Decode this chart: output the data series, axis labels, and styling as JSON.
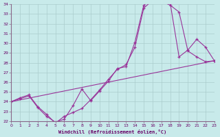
{
  "xlabel": "Windchill (Refroidissement éolien,°C)",
  "xlim": [
    0,
    23
  ],
  "ylim": [
    22,
    34
  ],
  "xticks": [
    0,
    1,
    2,
    3,
    4,
    5,
    6,
    7,
    8,
    9,
    10,
    11,
    12,
    13,
    14,
    15,
    16,
    17,
    18,
    19,
    20,
    21,
    22,
    23
  ],
  "yticks": [
    22,
    23,
    24,
    25,
    26,
    27,
    28,
    29,
    30,
    31,
    32,
    33,
    34
  ],
  "bg_color": "#c8eaea",
  "line_color": "#993399",
  "grid_color": "#aacccc",
  "line1_x": [
    0,
    1,
    2,
    3,
    4,
    5,
    6,
    7,
    8,
    9,
    10,
    11,
    12,
    13,
    14,
    15,
    16,
    17,
    18,
    19,
    20,
    21,
    22,
    23
  ],
  "line1_y": [
    24.0,
    24.4,
    24.7,
    23.5,
    22.7,
    21.8,
    22.5,
    22.9,
    23.3,
    24.2,
    25.2,
    26.3,
    27.3,
    27.8,
    29.6,
    33.6,
    34.4,
    34.3,
    33.9,
    33.2,
    29.2,
    28.6,
    28.1,
    28.2
  ],
  "line2_x": [
    0,
    1,
    2,
    3,
    4,
    5,
    6,
    7,
    8,
    9,
    10,
    11,
    12,
    13,
    14,
    15,
    16,
    17,
    18,
    19,
    20,
    21,
    22,
    23
  ],
  "line2_y": [
    24.0,
    24.3,
    24.6,
    23.4,
    22.5,
    21.9,
    22.2,
    23.6,
    25.3,
    24.1,
    25.1,
    26.1,
    27.4,
    27.6,
    30.1,
    33.9,
    34.5,
    34.6,
    34.1,
    28.6,
    29.3,
    30.4,
    29.6,
    28.2
  ],
  "line3_x": [
    0,
    23
  ],
  "line3_y": [
    24.0,
    28.2
  ]
}
